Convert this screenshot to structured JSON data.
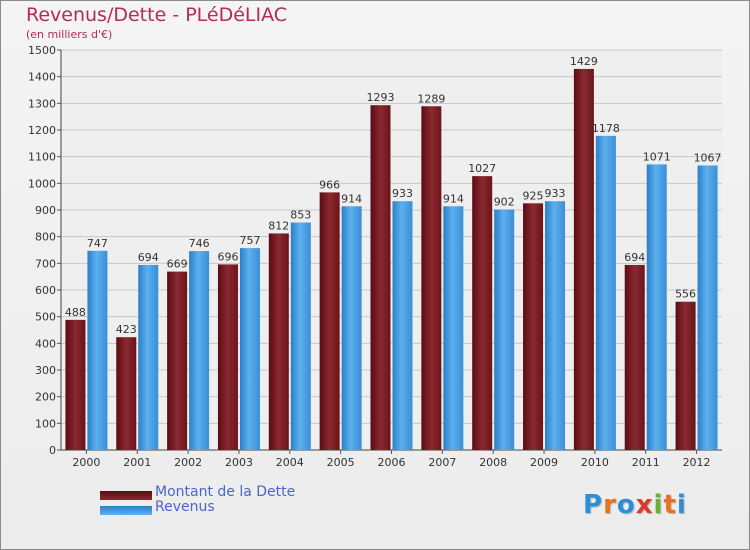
{
  "chart_data": {
    "type": "bar",
    "title": "Revenus/Dette - PLéDéLIAC",
    "subtitle": "(en milliers d'€)",
    "categories": [
      "2000",
      "2001",
      "2002",
      "2003",
      "2004",
      "2005",
      "2006",
      "2007",
      "2008",
      "2009",
      "2010",
      "2011",
      "2012"
    ],
    "series": [
      {
        "name": "Montant de la Dette",
        "color": "#7a1c22",
        "values": [
          488,
          423,
          669,
          696,
          812,
          966,
          1293,
          1289,
          1027,
          925,
          1429,
          694,
          556
        ]
      },
      {
        "name": "Revenus",
        "color": "#3a92d8",
        "values": [
          747,
          694,
          746,
          757,
          853,
          914,
          933,
          914,
          902,
          933,
          1178,
          1071,
          1067
        ]
      }
    ],
    "ylim": [
      0,
      1500
    ],
    "yticks": [
      0,
      100,
      200,
      300,
      400,
      500,
      600,
      700,
      800,
      900,
      1000,
      1100,
      1200,
      1300,
      1400,
      1500
    ],
    "grid": true,
    "legend": "bottom-left"
  },
  "logo": {
    "letters": [
      "P",
      "r",
      "o",
      "x",
      "i",
      "t",
      "i"
    ],
    "colors": [
      "#2a8fd6",
      "#e8731a",
      "#2a8fd6",
      "#d93a2a",
      "#6bb02e",
      "#e8731a",
      "#2a8fd6"
    ]
  }
}
